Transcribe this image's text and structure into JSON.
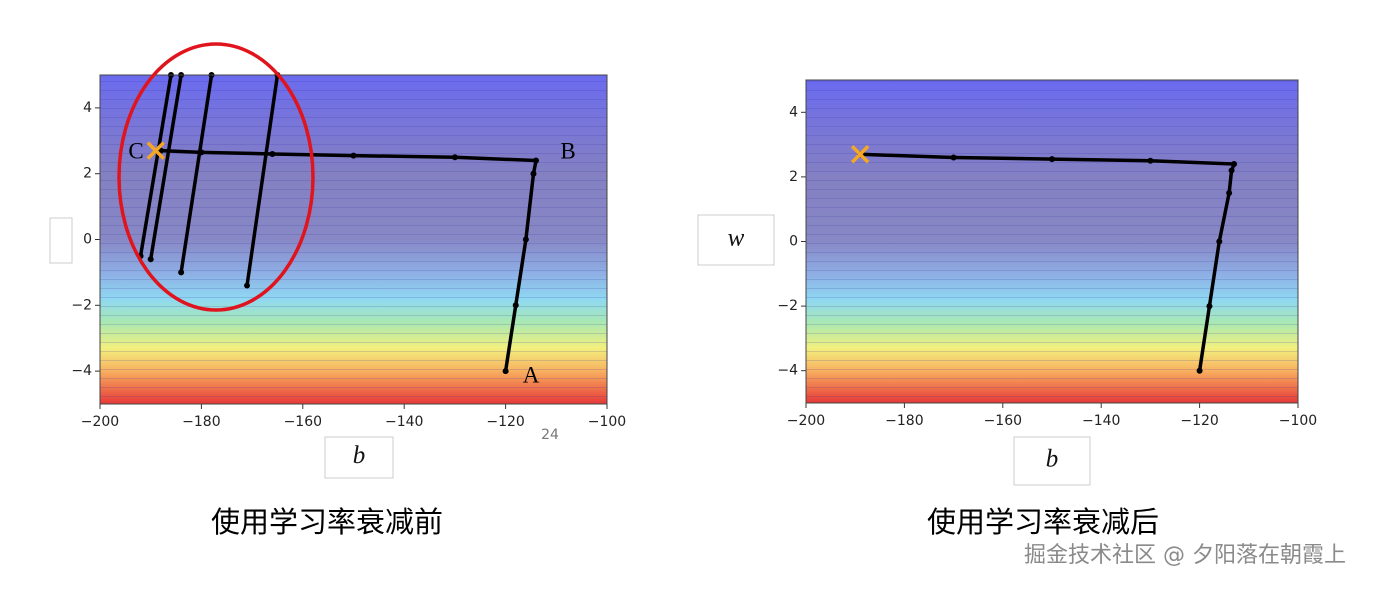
{
  "chart_data": [
    {
      "type": "line",
      "caption": "使用学习率衰减前",
      "x_label": "b",
      "annotations": [
        "A",
        "B",
        "C"
      ],
      "note": "24",
      "xlim": [
        -200,
        -100
      ],
      "ylim": [
        -5,
        5
      ],
      "xticks": [
        {
          "value": -200,
          "label": "−200"
        },
        {
          "value": -180,
          "label": "−180"
        },
        {
          "value": -160,
          "label": "−160"
        },
        {
          "value": -140,
          "label": "−140"
        },
        {
          "value": -120,
          "label": "−120"
        },
        {
          "value": -100,
          "label": "−100"
        }
      ],
      "yticks": [
        {
          "value": -4,
          "label": "−4"
        },
        {
          "value": -2,
          "label": "−2"
        },
        0,
        2,
        4
      ],
      "series": [
        {
          "color": "#000000",
          "x": [
            -120,
            -118,
            -116,
            -114.5,
            -114,
            -130,
            -150,
            -166,
            -180,
            -188,
            null,
            -171,
            -165,
            null,
            -184,
            -178,
            null,
            -192,
            -186,
            null,
            -190,
            -184
          ],
          "values": [
            -4,
            -2,
            0,
            2,
            2.4,
            2.5,
            2.55,
            2.6,
            2.65,
            2.7,
            null,
            -1.4,
            5,
            null,
            -1,
            5,
            null,
            -0.5,
            5,
            null,
            -0.6,
            5
          ]
        }
      ],
      "end_marker": {
        "x": -189,
        "y": 2.7,
        "color": "#f5a623"
      }
    },
    {
      "type": "line",
      "caption": "使用学习率衰减后",
      "x_label": "b",
      "y_label": "w",
      "xlim": [
        -200,
        -100
      ],
      "ylim": [
        -5,
        5
      ],
      "xticks": [
        {
          "value": -200,
          "label": "−200"
        },
        {
          "value": -180,
          "label": "−180"
        },
        {
          "value": -160,
          "label": "−160"
        },
        {
          "value": -140,
          "label": "−140"
        },
        {
          "value": -120,
          "label": "−120"
        },
        {
          "value": -100,
          "label": "−100"
        }
      ],
      "yticks": [
        {
          "value": -4,
          "label": "−4"
        },
        {
          "value": -2,
          "label": "−2"
        },
        0,
        2,
        4
      ],
      "series": [
        {
          "color": "#000000",
          "x": [
            -120,
            -118,
            -116,
            -114,
            -113.5,
            -113,
            -130,
            -150,
            -170,
            -189
          ],
          "values": [
            -4,
            -2,
            0,
            1.5,
            2.2,
            2.4,
            2.5,
            2.55,
            2.6,
            2.7
          ]
        }
      ],
      "end_marker": {
        "x": -189,
        "y": 2.7,
        "color": "#f5a623"
      }
    }
  ],
  "watermark": "掘金技术社区 @ 夕阳落在朝霞上"
}
